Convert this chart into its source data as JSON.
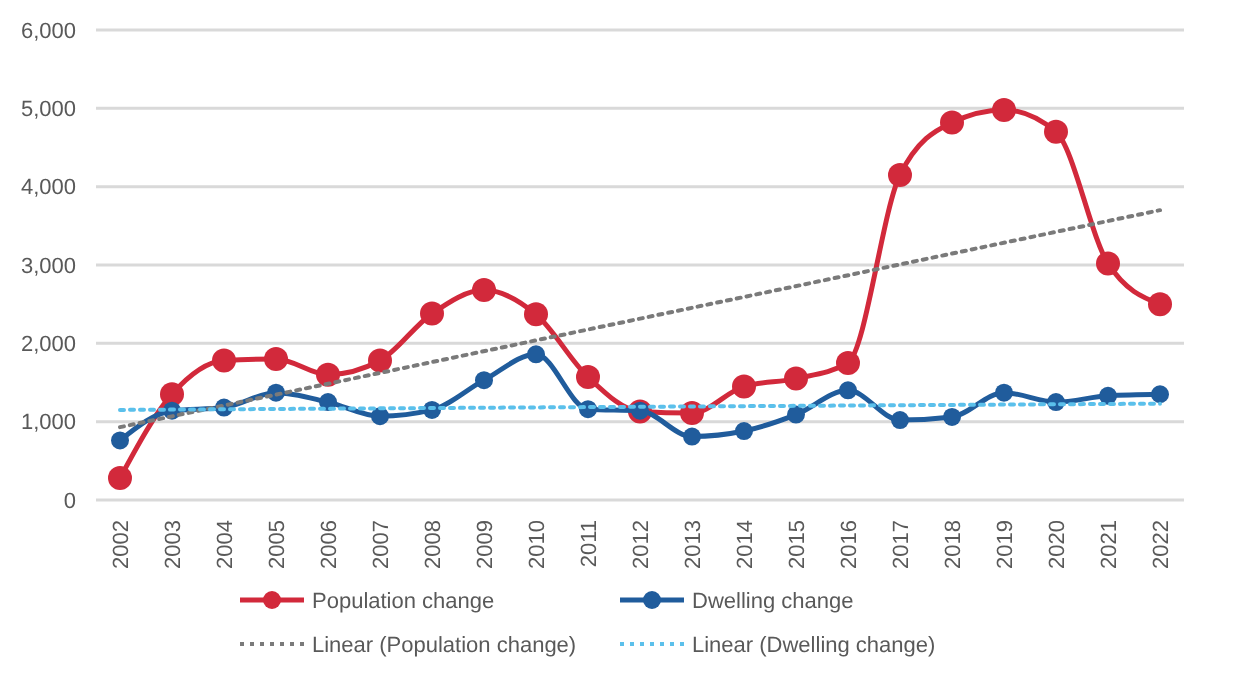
{
  "chart_data": {
    "type": "line",
    "categories": [
      "2002",
      "2003",
      "2004",
      "2005",
      "2006",
      "2007",
      "2008",
      "2009",
      "2010",
      "2011",
      "2012",
      "2013",
      "2014",
      "2015",
      "2016",
      "2017",
      "2018",
      "2019",
      "2020",
      "2021",
      "2022"
    ],
    "series": [
      {
        "name": "Population change",
        "color": "#d2293b",
        "marker": "circle",
        "values": [
          280,
          1350,
          1780,
          1800,
          1600,
          1780,
          2380,
          2680,
          2370,
          1570,
          1130,
          1110,
          1450,
          1550,
          1750,
          4150,
          4820,
          4980,
          4700,
          3020,
          2500
        ]
      },
      {
        "name": "Dwelling change",
        "color": "#205c9c",
        "marker": "circle",
        "values": [
          760,
          1140,
          1180,
          1370,
          1250,
          1070,
          1150,
          1530,
          1860,
          1160,
          1140,
          810,
          880,
          1090,
          1400,
          1020,
          1060,
          1370,
          1250,
          1330,
          1350
        ]
      },
      {
        "name": "Linear (Population change)",
        "color": "#7a7a7a",
        "marker": "none",
        "line_style": "dotted",
        "values": [
          930,
          null,
          null,
          null,
          null,
          null,
          null,
          null,
          null,
          null,
          null,
          null,
          null,
          null,
          null,
          null,
          null,
          null,
          null,
          null,
          3700
        ]
      },
      {
        "name": "Linear (Dwelling change)",
        "color": "#5bc0eb",
        "marker": "none",
        "line_style": "dotted",
        "values": [
          1150,
          null,
          null,
          null,
          null,
          null,
          null,
          null,
          null,
          null,
          null,
          null,
          null,
          null,
          null,
          null,
          null,
          null,
          null,
          null,
          1230
        ]
      }
    ],
    "ylim": [
      0,
      6000
    ],
    "yticks": [
      {
        "value": 0,
        "label": "0"
      },
      {
        "value": 1000,
        "label": "1,000"
      },
      {
        "value": 2000,
        "label": "2,000"
      },
      {
        "value": 3000,
        "label": "3,000"
      },
      {
        "value": 4000,
        "label": "4,000"
      },
      {
        "value": 5000,
        "label": "5,000"
      },
      {
        "value": 6000,
        "label": "6,000"
      }
    ],
    "grid": "y",
    "legend": "bottom"
  }
}
